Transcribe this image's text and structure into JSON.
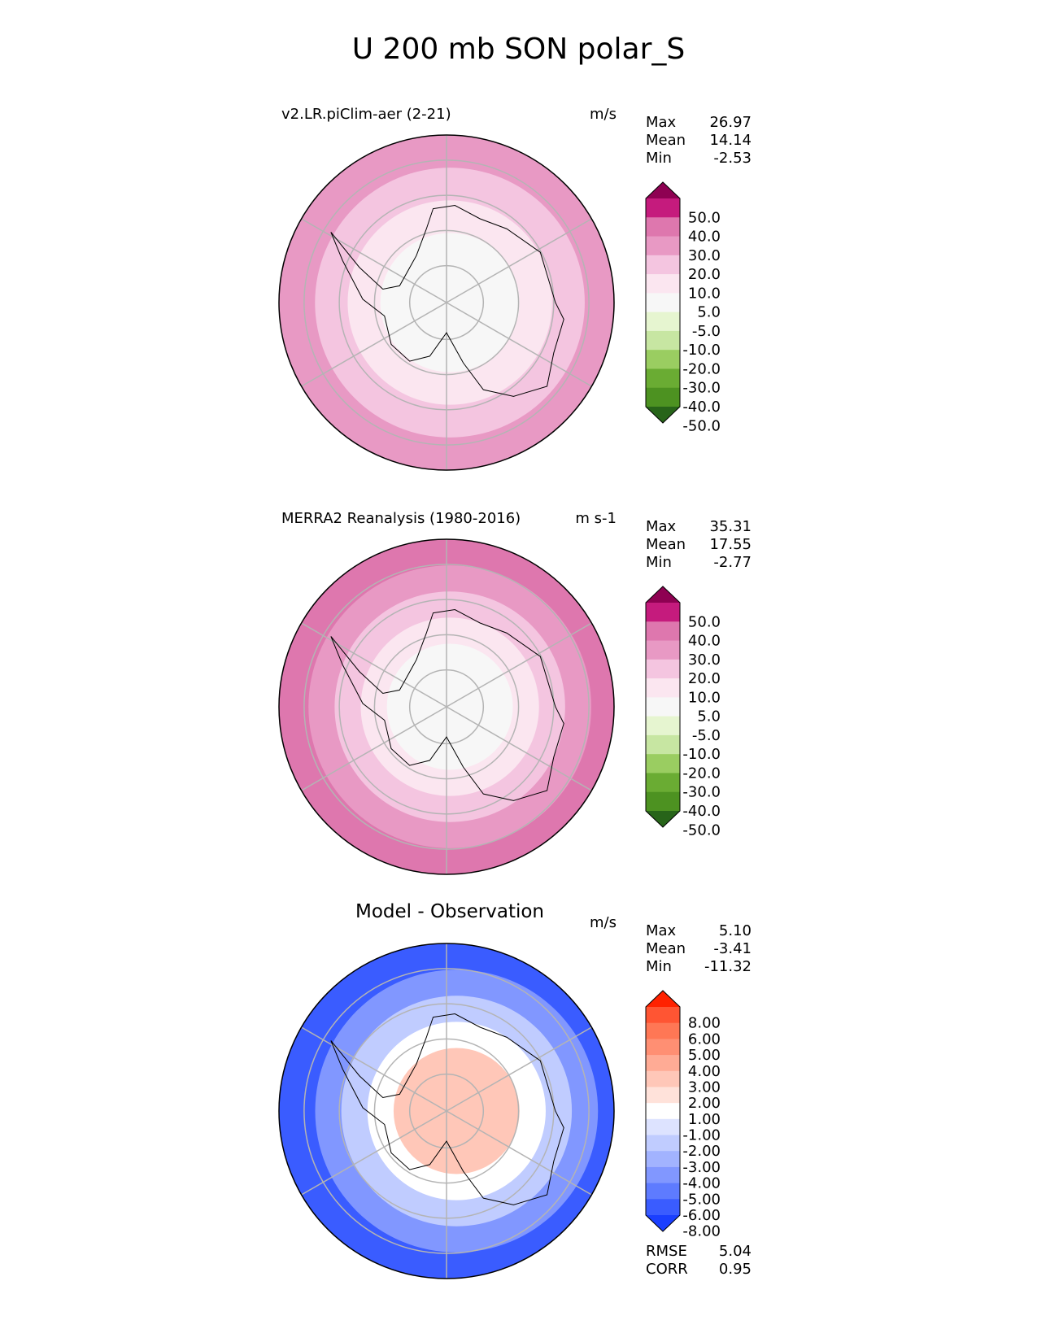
{
  "title": "U 200 mb SON polar_S",
  "chart_data": [
    {
      "type": "heatmap",
      "projection": "south-polar-stereographic",
      "title": "v2.LR.piClim-aer (2-21)",
      "units": "m/s",
      "stats": {
        "max_label": "Max",
        "max": "26.97",
        "mean_label": "Mean",
        "mean": "14.14",
        "min_label": "Min",
        "min": "-2.53"
      },
      "colorbar": {
        "ticks": [
          "50.0",
          "40.0",
          "30.0",
          "20.0",
          "10.0",
          "5.0",
          "-5.0",
          "-10.0",
          "-20.0",
          "-30.0",
          "-40.0",
          "-50.0"
        ],
        "colors": [
          "#8e0152",
          "#c51b7d",
          "#de77ae",
          "#e899c4",
          "#f4c5e0",
          "#fbe6f0",
          "#f7f7f7",
          "#e6f5d0",
          "#c7e6a2",
          "#9acd61",
          "#6aac33",
          "#4d9221",
          "#276419"
        ],
        "extend": "both"
      },
      "field_rings": [
        {
          "level": "20-30",
          "color": "#e899c4"
        },
        {
          "level": "10-20",
          "color": "#f4c5e0"
        },
        {
          "level": "5-10",
          "color": "#fbe6f0"
        },
        {
          "level": "-5-5",
          "color": "#f7f7f7"
        }
      ]
    },
    {
      "type": "heatmap",
      "projection": "south-polar-stereographic",
      "title": "MERRA2 Reanalysis (1980-2016)",
      "units": "m s-1",
      "stats": {
        "max_label": "Max",
        "max": "35.31",
        "mean_label": "Mean",
        "mean": "17.55",
        "min_label": "Min",
        "min": "-2.77"
      },
      "colorbar": {
        "ticks": [
          "50.0",
          "40.0",
          "30.0",
          "20.0",
          "10.0",
          "5.0",
          "-5.0",
          "-10.0",
          "-20.0",
          "-30.0",
          "-40.0",
          "-50.0"
        ],
        "colors": [
          "#8e0152",
          "#c51b7d",
          "#de77ae",
          "#e899c4",
          "#f4c5e0",
          "#fbe6f0",
          "#f7f7f7",
          "#e6f5d0",
          "#c7e6a2",
          "#9acd61",
          "#6aac33",
          "#4d9221",
          "#276419"
        ],
        "extend": "both"
      },
      "field_rings": [
        {
          "level": "30-40",
          "color": "#de77ae"
        },
        {
          "level": "20-30",
          "color": "#e899c4"
        },
        {
          "level": "10-20",
          "color": "#f4c5e0"
        },
        {
          "level": "5-10",
          "color": "#fbe6f0"
        },
        {
          "level": "-5-5",
          "color": "#f7f7f7"
        }
      ]
    },
    {
      "type": "heatmap",
      "projection": "south-polar-stereographic",
      "title": "Model - Observation",
      "units": "m/s",
      "stats": {
        "max_label": "Max",
        "max": "5.10",
        "mean_label": "Mean",
        "mean": "-3.41",
        "min_label": "Min",
        "min": "-11.32"
      },
      "colorbar": {
        "ticks": [
          "8.00",
          "6.00",
          "5.00",
          "4.00",
          "3.00",
          "2.00",
          "1.00",
          "-1.00",
          "-2.00",
          "-3.00",
          "-4.00",
          "-5.00",
          "-6.00",
          "-8.00"
        ],
        "colors": [
          "#ff2200",
          "#ff5533",
          "#ff7755",
          "#ff8f73",
          "#ffab95",
          "#ffc7b8",
          "#ffe2da",
          "#ffffff",
          "#dde3ff",
          "#c0ccff",
          "#a2b3ff",
          "#8197ff",
          "#5e7bff",
          "#3a5cff",
          "#1a3fff"
        ],
        "extend": "both"
      },
      "field_rings": [
        {
          "level": "-6--8",
          "color": "#3a5cff"
        },
        {
          "level": "-4--5",
          "color": "#8197ff"
        },
        {
          "level": "-2--3",
          "color": "#c0ccff"
        },
        {
          "level": "-1-1",
          "color": "#ffffff"
        },
        {
          "level": "1-3",
          "color": "#ffc7b8"
        }
      ],
      "bottom_stats": {
        "rmse_label": "RMSE",
        "rmse": "5.04",
        "corr_label": "CORR",
        "corr": "0.95"
      }
    }
  ]
}
